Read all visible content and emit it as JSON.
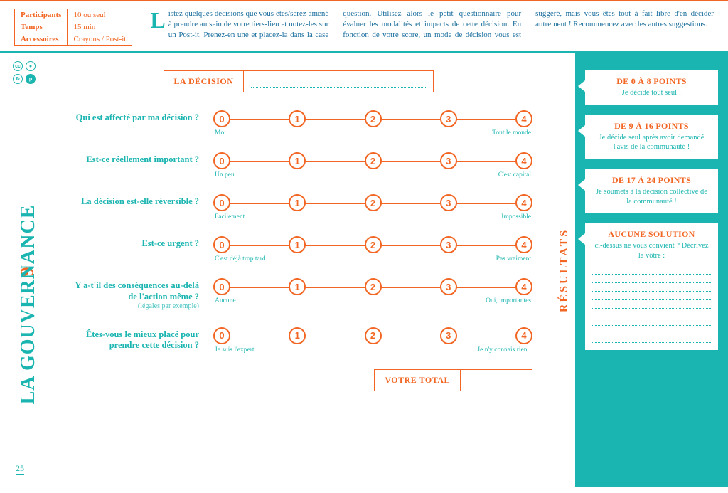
{
  "meta": {
    "rows": [
      {
        "k": "Participants",
        "v": "10 ou seul"
      },
      {
        "k": "Temps",
        "v": "15 min"
      },
      {
        "k": "Accessoires",
        "v": "Crayons / Post-it"
      }
    ]
  },
  "intro": {
    "dropcap": "L",
    "text": "istez quelques décisions que vous êtes/serez amené à prendre au sein de votre tiers-lieu et notez-les sur un Post-it. Prenez-en une et placez-la dans la case question. Utilisez alors le petit questionnaire pour évaluer les modalités et impacts de cette décision. En fonction de votre score, un mode de décision vous est suggéré, mais vous êtes tout à fait libre d'en décider autrement ! Recommencez avec les autres suggestions."
  },
  "side": {
    "number": "9",
    "title": "LA GOUVERNANCE",
    "page": "25"
  },
  "decision_label": "LA DÉCISION",
  "scale_ticks": [
    "0",
    "1",
    "2",
    "3",
    "4"
  ],
  "questions": [
    {
      "q": "Qui est affecté par ma décision ?",
      "low": "Moi",
      "high": "Tout le monde"
    },
    {
      "q": "Est-ce réellement important ?",
      "low": "Un peu",
      "high": "C'est capital"
    },
    {
      "q": "La décision est-elle réversible ?",
      "low": "Facilement",
      "high": "Impossible"
    },
    {
      "q": "Est-ce urgent ?",
      "low": "C'est déjà trop tard",
      "high": "Pas vraiment"
    },
    {
      "q": "Y a-t'il des conséquences au-delà de l'action même ?",
      "sub": "(légales par exemple)",
      "low": "Aucune",
      "high": "Oui, importantes"
    },
    {
      "q": "Êtes-vous le mieux placé pour prendre cette décision ?",
      "low": "Je suis l'expert !",
      "high": "Je n'y connais rien !"
    }
  ],
  "total_label": "VOTRE TOTAL",
  "results_label": "RÉSULTATS",
  "results": [
    {
      "title": "DE 0 À 8 POINTS",
      "text": "Je décide tout seul !"
    },
    {
      "title": "DE 9 À 16 POINTS",
      "text": "Je décide seul après avoir demandé l'avis de la communauté !"
    },
    {
      "title": "DE 17 À 24 POINTS",
      "text": "Je soumets à la décision collective de la communauté !"
    }
  ],
  "custom": {
    "title": "AUCUNE SOLUTION",
    "text": "ci-dessus ne vous convient ? Décrivez la vôtre :",
    "lines": 9
  }
}
